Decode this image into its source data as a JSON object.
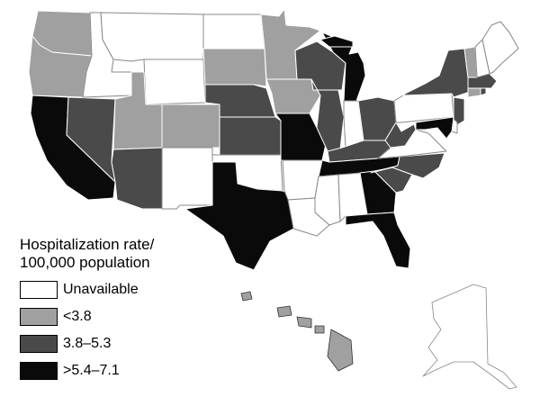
{
  "legend": {
    "title_line1": "Hospitalization rate/",
    "title_line2": "100,000 population",
    "items": [
      {
        "label": "Unavailable",
        "color": "#ffffff"
      },
      {
        "label": "<3.8",
        "color": "#a0a0a0"
      },
      {
        "label": "3.8–5.3",
        "color": "#4a4a4a"
      },
      {
        "label": ">5.4–7.1",
        "color": "#0a0a0a"
      }
    ]
  },
  "states": {
    "WA": "<3.8",
    "OR": "<3.8",
    "CA": ">5.4–7.1",
    "NV": "3.8–5.3",
    "ID": "Unavailable",
    "MT": "Unavailable",
    "WY": "Unavailable",
    "UT": "<3.8",
    "CO": "<3.8",
    "AZ": "3.8–5.3",
    "NM": "Unavailable",
    "ND": "Unavailable",
    "SD": "<3.8",
    "NE": "3.8–5.3",
    "KS": "3.8–5.3",
    "OK": "Unavailable",
    "TX": ">5.4–7.1",
    "MN": "<3.8",
    "IA": "<3.8",
    "MO": ">5.4–7.1",
    "AR": "Unavailable",
    "LA": "Unavailable",
    "WI": "3.8–5.3",
    "IL": "3.8–5.3",
    "MI": ">5.4–7.1",
    "IN": "Unavailable",
    "OH": "3.8–5.3",
    "KY": "3.8–5.3",
    "TN": ">5.4–7.1",
    "MS": "Unavailable",
    "AL": "Unavailable",
    "GA": ">5.4–7.1",
    "FL": ">5.4–7.1",
    "SC": "3.8–5.3",
    "NC": "3.8–5.3",
    "VA": "Unavailable",
    "WV": "3.8–5.3",
    "PA": "Unavailable",
    "NY": "3.8–5.3",
    "NJ": "3.8–5.3",
    "DE": "Unavailable",
    "MD": ">5.4–7.1",
    "CT": "<3.8",
    "RI": "3.8–5.3",
    "MA": "3.8–5.3",
    "VT": "<3.8",
    "NH": "Unavailable",
    "ME": "Unavailable",
    "AK": "Unavailable",
    "HI": "<3.8"
  }
}
